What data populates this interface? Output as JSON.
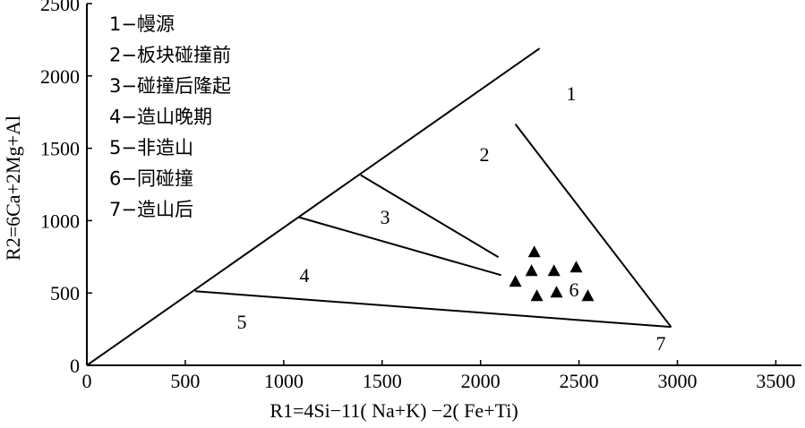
{
  "chart_data": {
    "type": "scatter",
    "xlabel": "R1=4Si−11( Na+K) −2( Fe+Ti)",
    "ylabel": "R2=6Ca+2Mg+Al",
    "xlim": [
      0,
      3630
    ],
    "ylim": [
      0,
      2500
    ],
    "xticks": [
      0,
      500,
      1000,
      1500,
      2000,
      2500,
      3000,
      3500
    ],
    "yticks": [
      0,
      500,
      1000,
      1500,
      2000,
      2500
    ],
    "legend": [
      "1−幔源",
      "2−板块碰撞前",
      "3−碰撞后隆起",
      "4−造山晚期",
      "5−非造山",
      "6−同碰撞",
      "7−造山后"
    ],
    "region_labels": [
      "1",
      "2",
      "3",
      "4",
      "5",
      "6",
      "7"
    ],
    "boundaries": [
      {
        "x": [
          0,
          2300
        ],
        "y": [
          0,
          2190
        ]
      },
      {
        "x": [
          2177,
          2968
        ],
        "y": [
          1667,
          265
        ]
      },
      {
        "x": [
          550,
          2968
        ],
        "y": [
          512,
          265
        ]
      },
      {
        "x": [
          1073,
          2105
        ],
        "y": [
          1025,
          623
        ]
      },
      {
        "x": [
          1391,
          2091
        ],
        "y": [
          1315,
          747
        ]
      }
    ],
    "color": "#000000",
    "series": [
      {
        "x": [
          2273,
          2259,
          2373,
          2486,
          2177,
          2286,
          2386,
          2545
        ],
        "values": [
          778,
          648,
          648,
          673,
          574,
          475,
          500,
          475
        ]
      }
    ]
  }
}
